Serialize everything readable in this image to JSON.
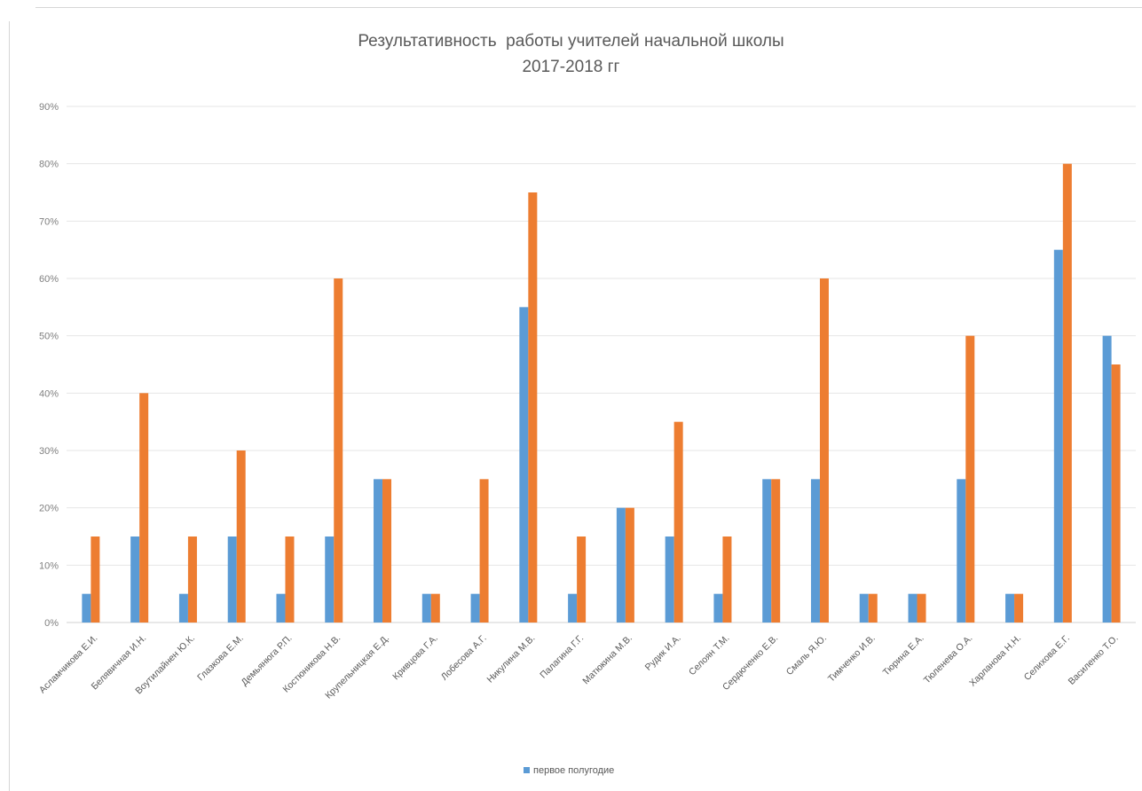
{
  "chart_data": {
    "type": "bar",
    "title": "Результативность  работы учителей начальной школы",
    "subtitle": "2017-2018 гг",
    "categories": [
      "Асламчикова Е.И.",
      "Белявичная И.Н.",
      "Воутилайнен Ю.К.",
      "Глазкова Е.М.",
      "Демьянюга Р.П.",
      "Костюникова Н.В.",
      "Крупельницкая Е.Д.",
      "Кривцова Г.А.",
      "Лобесова А.Г.",
      "Никулина М.В.",
      "Палагина Г.Г.",
      "Матюкина М.В.",
      "Рудик И.А.",
      "Селоян Т.М.",
      "Сердюченко Е.В.",
      "Смаль Я.Ю.",
      "Тимченко И.В.",
      "Тюрина Е.А.",
      "Тюленева О.А.",
      "Харланова Н.Н.",
      "Селихова Е.Г.",
      "Василенко Т.О."
    ],
    "series": [
      {
        "name": "первое полугодие",
        "color": "#5b9bd5",
        "values": [
          5,
          15,
          5,
          15,
          5,
          15,
          25,
          5,
          5,
          55,
          5,
          20,
          15,
          5,
          25,
          25,
          5,
          5,
          25,
          5,
          65,
          50
        ]
      },
      {
        "color": "#ed7d31",
        "values": [
          15,
          40,
          15,
          30,
          15,
          60,
          25,
          5,
          25,
          75,
          15,
          20,
          35,
          15,
          25,
          60,
          5,
          5,
          50,
          5,
          80,
          45
        ]
      }
    ],
    "y_ticks": [
      "0%",
      "10%",
      "20%",
      "30%",
      "40%",
      "50%",
      "60%",
      "70%",
      "80%",
      "90%"
    ],
    "ylim": [
      0,
      90
    ],
    "grid": true,
    "legend_position": "bottom"
  }
}
